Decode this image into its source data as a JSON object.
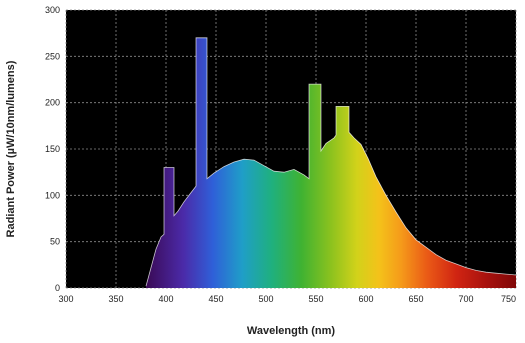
{
  "chart_data": {
    "type": "area",
    "title": "",
    "xlabel": "Wavelength (nm)",
    "ylabel": "Radiant Power (µW/10nm/lumens)",
    "xlim": [
      300,
      750
    ],
    "ylim": [
      0,
      300
    ],
    "x_ticks": [
      300,
      350,
      400,
      450,
      500,
      550,
      600,
      650,
      700,
      750
    ],
    "y_ticks": [
      0,
      50,
      100,
      150,
      200,
      250,
      300
    ],
    "grid": true,
    "background": "#000000",
    "grid_color": "#8a8a8a",
    "curve_color": "#ffffff",
    "series": [
      {
        "x": [
          380,
          385,
          390,
          395,
          398,
          398,
          408,
          408,
          412,
          418,
          425,
          430,
          430,
          441,
          441,
          448,
          458,
          468,
          478,
          488,
          498,
          508,
          518,
          528,
          538,
          543,
          543,
          555,
          555,
          560,
          568,
          570,
          570,
          583,
          583,
          588,
          595,
          602,
          610,
          620,
          630,
          640,
          650,
          660,
          670,
          680,
          690,
          700,
          710,
          720,
          730,
          740,
          750
        ],
        "y": [
          2,
          22,
          42,
          55,
          58,
          130,
          130,
          78,
          83,
          93,
          103,
          110,
          270,
          270,
          118,
          124,
          131,
          136,
          139,
          138,
          132,
          126,
          125,
          128,
          122,
          118,
          220,
          220,
          148,
          156,
          162,
          165,
          196,
          196,
          168,
          162,
          155,
          140,
          120,
          100,
          82,
          65,
          52,
          44,
          36,
          30,
          26,
          22,
          19,
          17,
          16,
          15,
          14
        ]
      }
    ]
  }
}
